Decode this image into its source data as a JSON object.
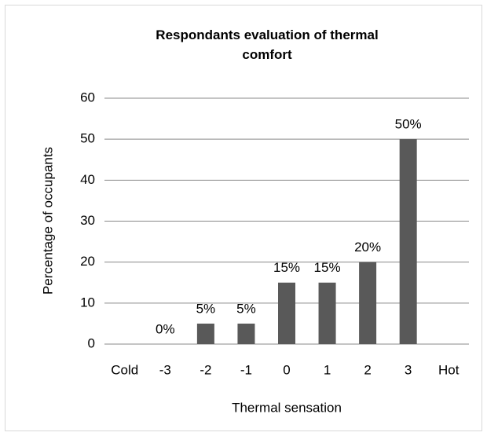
{
  "chart_data": {
    "type": "bar",
    "title": "Respondants evaluation of thermal comfort",
    "x_label": "Thermal sensation",
    "y_label": "Percentage of occupants",
    "categories": [
      "Cold",
      "-3",
      "-2",
      "-1",
      "0",
      "1",
      "2",
      "3",
      "Hot"
    ],
    "values": [
      null,
      0,
      5,
      5,
      15,
      15,
      20,
      50,
      null
    ],
    "value_labels": [
      null,
      "0%",
      "5%",
      "5%",
      "15%",
      "15%",
      "20%",
      "50%",
      null
    ],
    "color": "#595959",
    "ylim": [
      0,
      60
    ],
    "yticks": [
      0,
      10,
      20,
      30,
      40,
      50,
      60
    ],
    "grid": true
  }
}
